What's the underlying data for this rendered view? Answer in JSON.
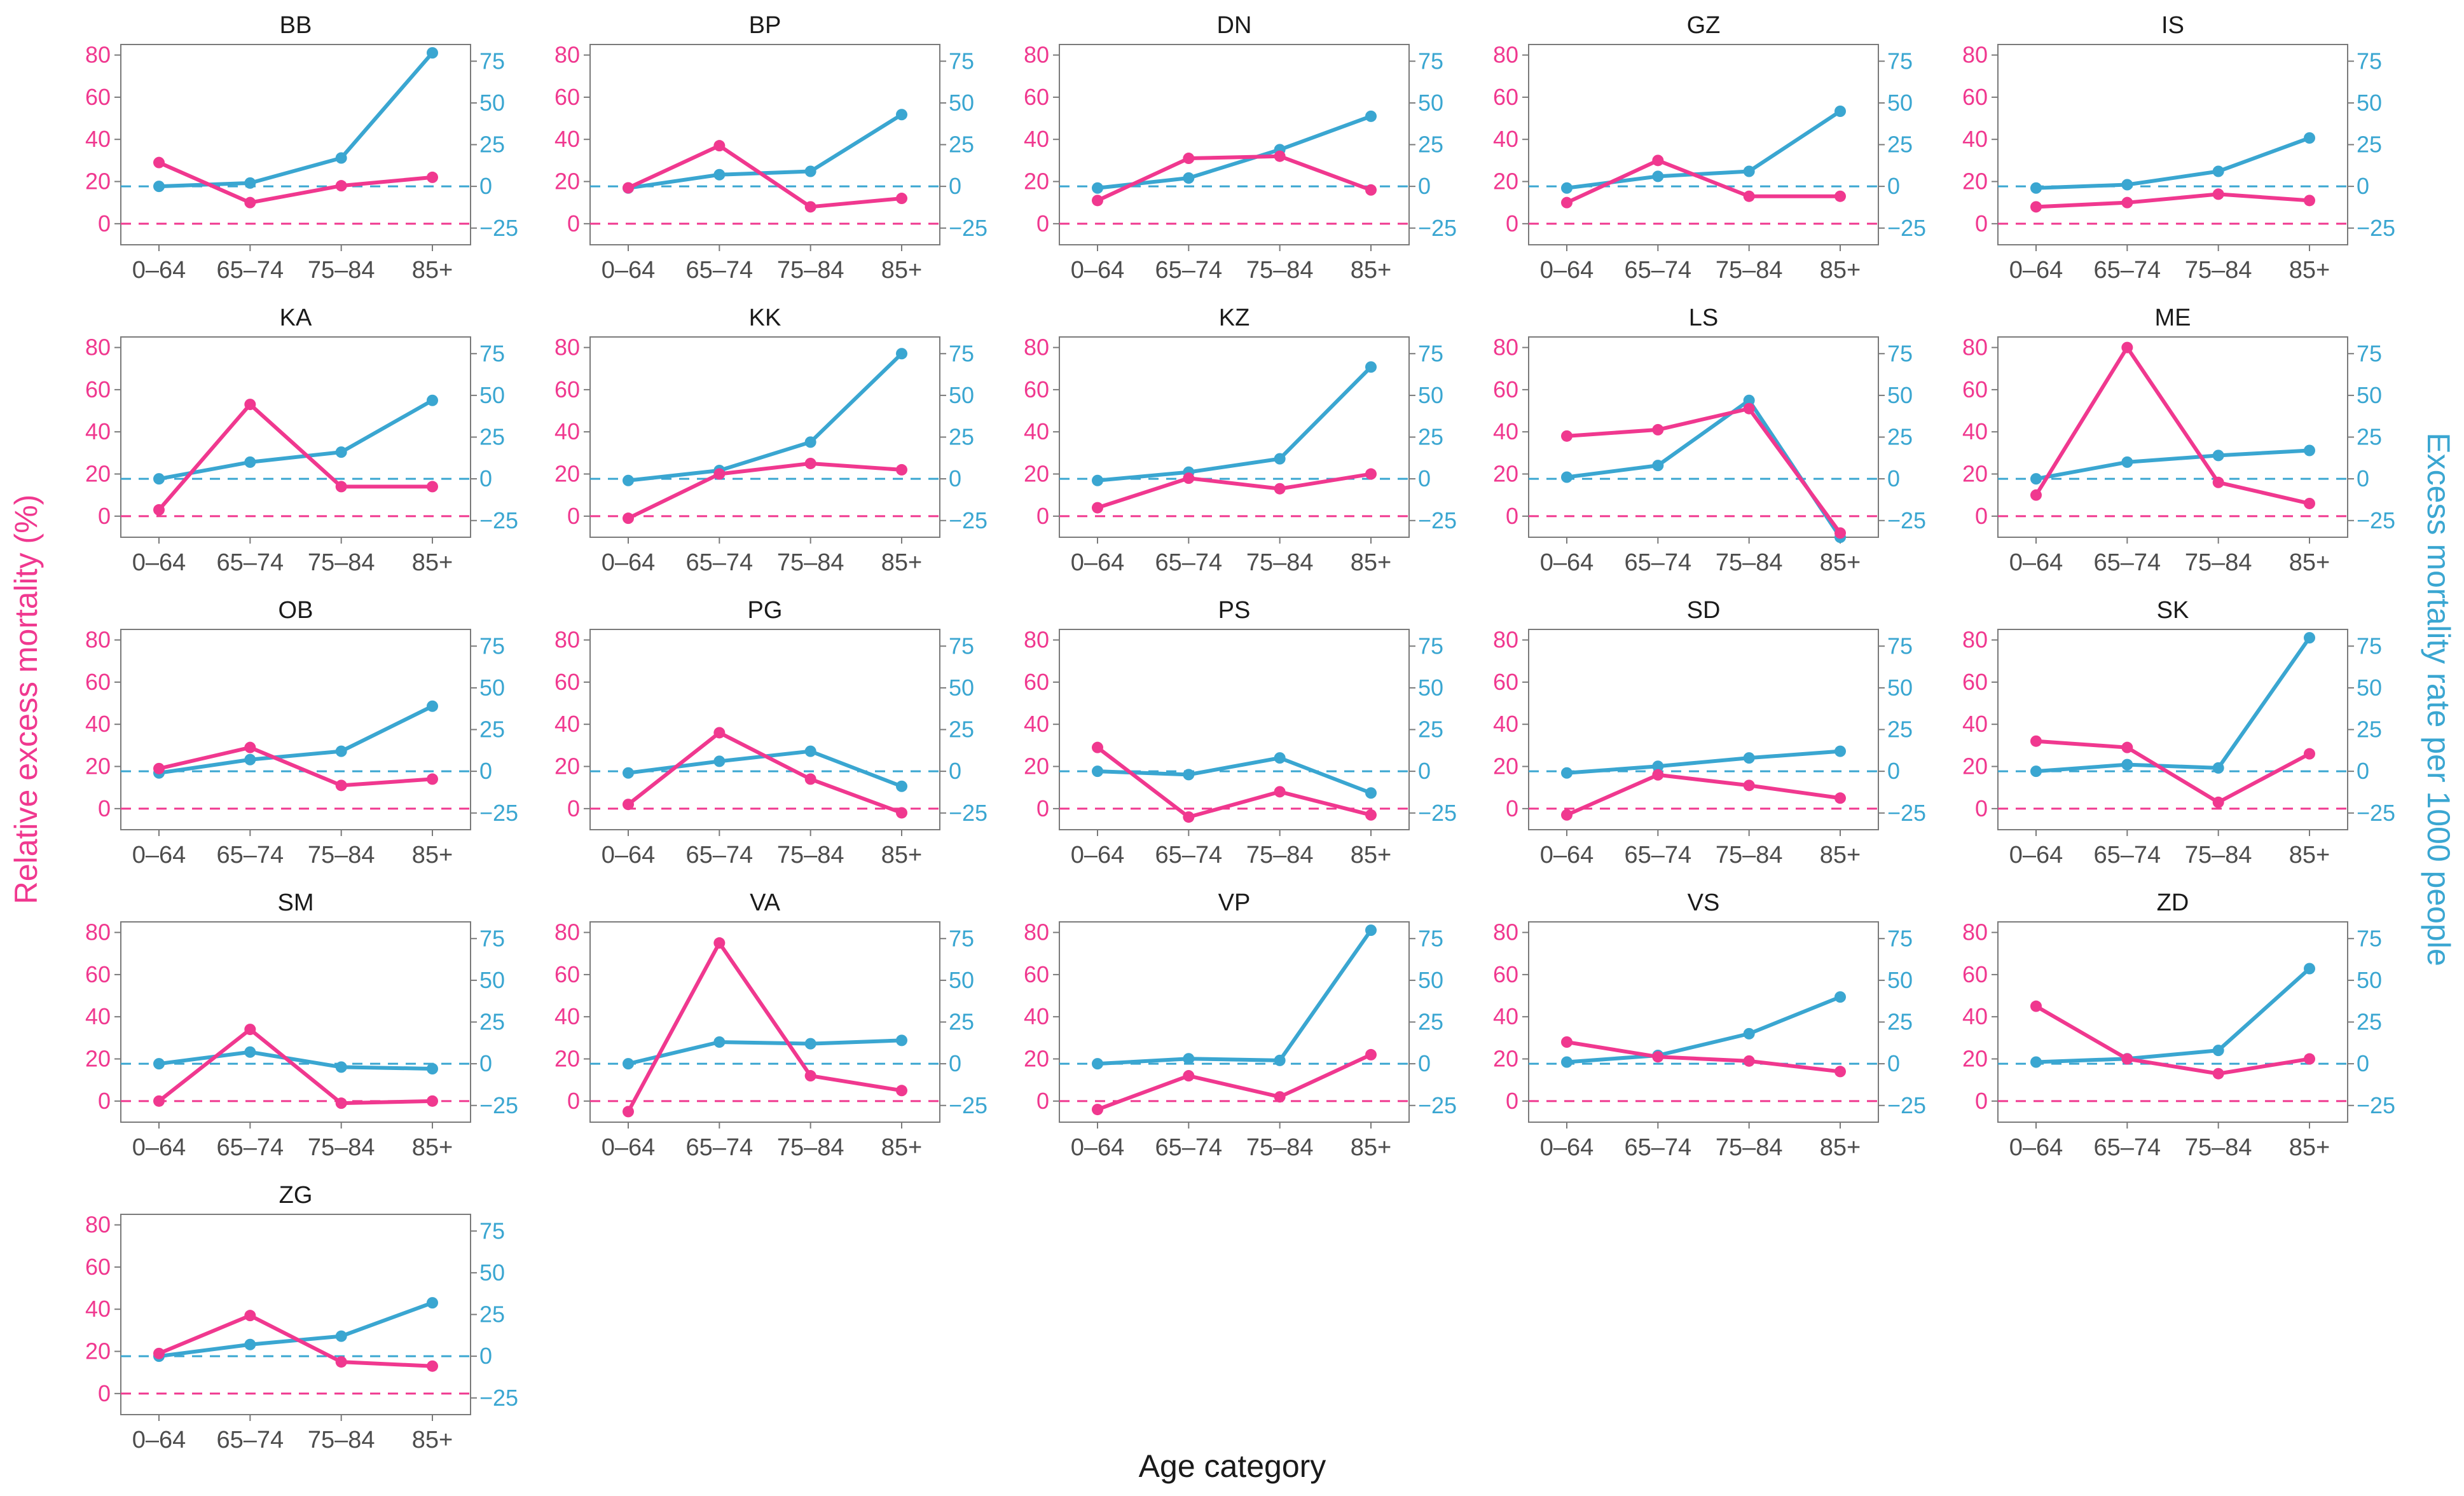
{
  "colors": {
    "relative": "#f0388f",
    "excess": "#3aa6d1",
    "frame": "#7a7a7a",
    "tick_text": "#4d4d4d",
    "title_text": "#1a1a1a"
  },
  "chart_data": {
    "type": "line",
    "layout": "small-multiples, 5 columns",
    "xlabel": "Age category",
    "ylabel_left": "Relative excess mortality (%)",
    "ylabel_right": "Excess mortality rate per 1000 people",
    "categories": [
      "0–64",
      "65–74",
      "75–84",
      "85+"
    ],
    "left_axis": {
      "range": [
        -10,
        85
      ],
      "ticks": [
        0,
        20,
        40,
        60,
        80
      ],
      "tick_labels": [
        "0",
        "20",
        "40",
        "60",
        "80"
      ],
      "reference_line": 0
    },
    "right_axis": {
      "range": [
        -35,
        85
      ],
      "ticks": [
        -25,
        0,
        25,
        50,
        75
      ],
      "tick_labels": [
        "−25",
        "0",
        "25",
        "50",
        "75"
      ],
      "reference_line": 0
    },
    "series_names": [
      "Relative excess mortality (%)",
      "Excess mortality rate per 1000 people"
    ],
    "panels": [
      {
        "name": "BB",
        "relative": [
          29,
          10,
          18,
          22
        ],
        "excess": [
          0,
          2,
          17,
          80
        ]
      },
      {
        "name": "BP",
        "relative": [
          17,
          37,
          8,
          12
        ],
        "excess": [
          -1,
          7,
          9,
          43
        ]
      },
      {
        "name": "DN",
        "relative": [
          11,
          31,
          32,
          16
        ],
        "excess": [
          -1,
          5,
          22,
          42
        ]
      },
      {
        "name": "GZ",
        "relative": [
          10,
          30,
          13,
          13
        ],
        "excess": [
          -1,
          6,
          9,
          45
        ]
      },
      {
        "name": "IS",
        "relative": [
          8,
          10,
          14,
          11
        ],
        "excess": [
          -1,
          1,
          9,
          29
        ]
      },
      {
        "name": "KA",
        "relative": [
          3,
          53,
          14,
          14
        ],
        "excess": [
          0,
          10,
          16,
          47
        ]
      },
      {
        "name": "KK",
        "relative": [
          -1,
          20,
          25,
          22
        ],
        "excess": [
          -1,
          5,
          22,
          75
        ]
      },
      {
        "name": "KZ",
        "relative": [
          4,
          18,
          13,
          20
        ],
        "excess": [
          -1,
          4,
          12,
          67
        ]
      },
      {
        "name": "LS",
        "relative": [
          38,
          41,
          51,
          -8
        ],
        "excess": [
          1,
          8,
          47,
          -35
        ]
      },
      {
        "name": "ME",
        "relative": [
          10,
          80,
          16,
          6
        ],
        "excess": [
          0,
          10,
          14,
          17
        ]
      },
      {
        "name": "OB",
        "relative": [
          19,
          29,
          11,
          14
        ],
        "excess": [
          -1,
          7,
          12,
          39
        ]
      },
      {
        "name": "PG",
        "relative": [
          2,
          36,
          14,
          -2
        ],
        "excess": [
          -1,
          6,
          12,
          -9
        ]
      },
      {
        "name": "PS",
        "relative": [
          29,
          -4,
          8,
          -3
        ],
        "excess": [
          0,
          -2,
          8,
          -13
        ]
      },
      {
        "name": "SD",
        "relative": [
          -3,
          16,
          11,
          5
        ],
        "excess": [
          -1,
          3,
          8,
          12
        ]
      },
      {
        "name": "SK",
        "relative": [
          32,
          29,
          3,
          26
        ],
        "excess": [
          0,
          4,
          2,
          80
        ]
      },
      {
        "name": "SM",
        "relative": [
          0,
          34,
          -1,
          0
        ],
        "excess": [
          0,
          7,
          -2,
          -3
        ]
      },
      {
        "name": "VA",
        "relative": [
          -5,
          75,
          12,
          5
        ],
        "excess": [
          0,
          13,
          12,
          14
        ]
      },
      {
        "name": "VP",
        "relative": [
          -4,
          12,
          2,
          22
        ],
        "excess": [
          0,
          3,
          2,
          80
        ]
      },
      {
        "name": "VS",
        "relative": [
          28,
          21,
          19,
          14
        ],
        "excess": [
          1,
          5,
          18,
          40
        ]
      },
      {
        "name": "ZD",
        "relative": [
          45,
          20,
          13,
          20
        ],
        "excess": [
          1,
          3,
          8,
          57
        ]
      },
      {
        "name": "ZG",
        "relative": [
          19,
          37,
          15,
          13
        ],
        "excess": [
          0,
          7,
          12,
          32
        ]
      }
    ]
  }
}
